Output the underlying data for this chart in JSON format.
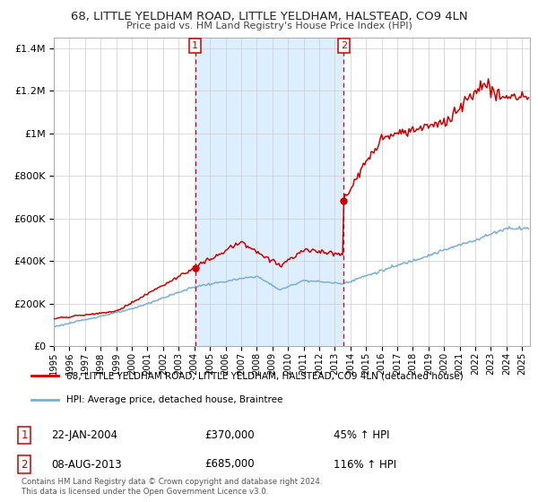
{
  "title": "68, LITTLE YELDHAM ROAD, LITTLE YELDHAM, HALSTEAD, CO9 4LN",
  "subtitle": "Price paid vs. HM Land Registry's House Price Index (HPI)",
  "legend_line1": "68, LITTLE YELDHAM ROAD, LITTLE YELDHAM, HALSTEAD, CO9 4LN (detached house)",
  "legend_line2": "HPI: Average price, detached house, Braintree",
  "annotation1_label": "1",
  "annotation1_date": "22-JAN-2004",
  "annotation1_price": "£370,000",
  "annotation1_hpi": "45% ↑ HPI",
  "annotation2_label": "2",
  "annotation2_date": "08-AUG-2013",
  "annotation2_price": "£685,000",
  "annotation2_hpi": "116% ↑ HPI",
  "footer": "Contains HM Land Registry data © Crown copyright and database right 2024.\nThis data is licensed under the Open Government Licence v3.0.",
  "red_color": "#cc0000",
  "blue_color": "#7aafd4",
  "background_color": "#ffffff",
  "grid_color": "#cccccc",
  "shade_color": "#ddeeff",
  "ylim": [
    0,
    1450000
  ],
  "purchase1_year": 2004.06,
  "purchase1_value": 370000,
  "purchase2_year": 2013.58,
  "purchase2_value": 685000
}
